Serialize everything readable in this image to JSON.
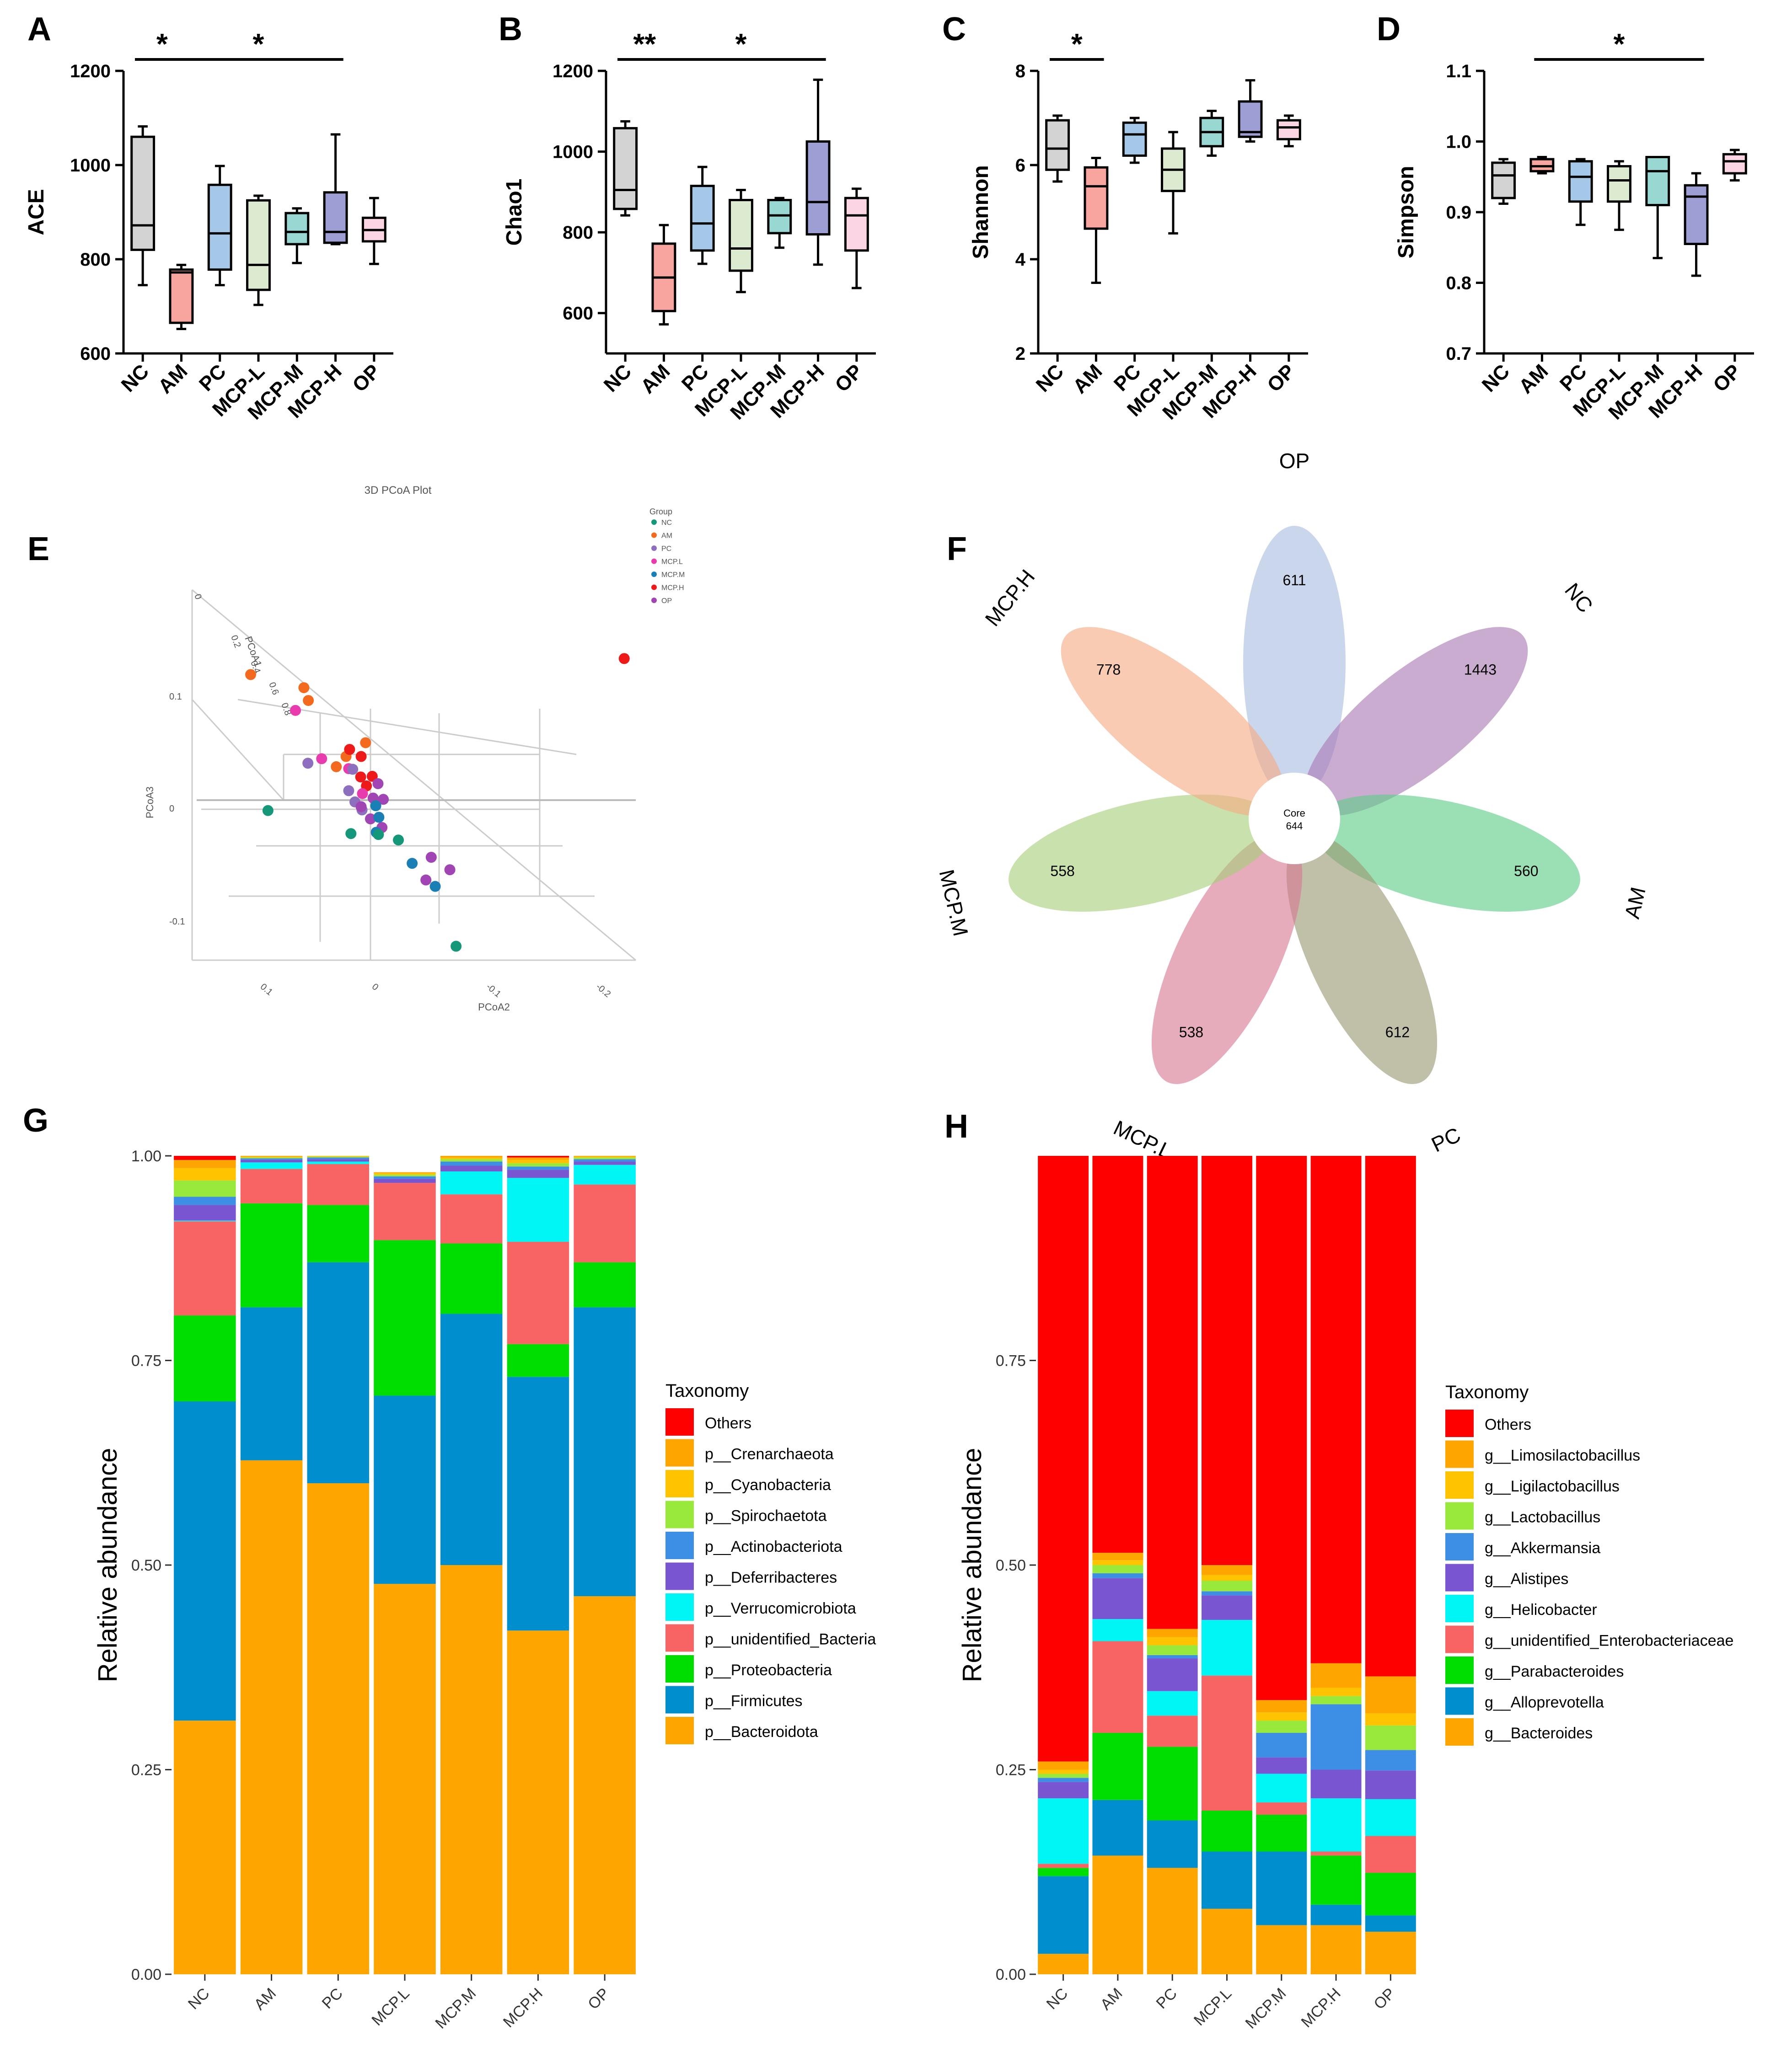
{
  "colors": {
    "groups": [
      "#d3d3d3",
      "#f8a5a0",
      "#a5c8e8",
      "#dcebcf",
      "#99d7d2",
      "#9d9ed4",
      "#fcd5e4"
    ],
    "pcoa": [
      "#15977a",
      "#f36a1f",
      "#8e6fbf",
      "#e83cae",
      "#1a7fb4",
      "#ee1a1a",
      "#a145b4"
    ],
    "venn": [
      "#a9bde0",
      "#a979b5",
      "#5ecd86",
      "#9a9872",
      "#d87993",
      "#a8cf7a",
      "#f6ab82"
    ],
    "phylum": [
      "#ff0000",
      "#ffa500",
      "#ffc300",
      "#99e83c",
      "#3d8fe6",
      "#7a55d2",
      "#00f5f5",
      "#f86464",
      "#00dd00",
      "#008ecf",
      "#ffa500"
    ],
    "genus": [
      "#ff0000",
      "#ffa500",
      "#ffc300",
      "#99e83c",
      "#3d8fe6",
      "#7a55d2",
      "#00f5f5",
      "#f86464",
      "#00dd00",
      "#008ecf",
      "#ffa500"
    ]
  },
  "chart_data": [
    {
      "type": "box",
      "panel": "A",
      "ylabel": "ACE",
      "ylim": [
        600,
        1200
      ],
      "yticks": [
        600,
        800,
        1000,
        1200
      ],
      "categories": [
        "NC",
        "AM",
        "PC",
        "MCP-L",
        "MCP-M",
        "MCP-H",
        "OP"
      ],
      "boxes": [
        {
          "min": 745,
          "q1": 820,
          "median": 872,
          "q3": 1060,
          "max": 1082
        },
        {
          "min": 652,
          "q1": 665,
          "median": 772,
          "q3": 778,
          "max": 788
        },
        {
          "min": 745,
          "q1": 778,
          "median": 855,
          "q3": 958,
          "max": 998
        },
        {
          "min": 703,
          "q1": 735,
          "median": 788,
          "q3": 925,
          "max": 935
        },
        {
          "min": 792,
          "q1": 832,
          "median": 858,
          "q3": 898,
          "max": 908
        },
        {
          "min": 832,
          "q1": 835,
          "median": 858,
          "q3": 942,
          "max": 1065
        },
        {
          "min": 790,
          "q1": 838,
          "median": 862,
          "q3": 888,
          "max": 930
        }
      ],
      "significance": [
        {
          "from": 0,
          "to": 1,
          "label": "*"
        },
        {
          "from": 1,
          "to": 5,
          "label": "*"
        }
      ]
    },
    {
      "type": "box",
      "panel": "B",
      "ylabel": "Chao1",
      "ylim": [
        500,
        1200
      ],
      "yticks": [
        600,
        800,
        1000,
        1200
      ],
      "categories": [
        "NC",
        "AM",
        "PC",
        "MCP-L",
        "MCP-M",
        "MCP-H",
        "OP"
      ],
      "boxes": [
        {
          "min": 842,
          "q1": 858,
          "median": 905,
          "q3": 1058,
          "max": 1075
        },
        {
          "min": 572,
          "q1": 605,
          "median": 688,
          "q3": 772,
          "max": 818
        },
        {
          "min": 722,
          "q1": 755,
          "median": 822,
          "q3": 915,
          "max": 962
        },
        {
          "min": 652,
          "q1": 705,
          "median": 760,
          "q3": 880,
          "max": 905
        },
        {
          "min": 762,
          "q1": 798,
          "median": 842,
          "q3": 880,
          "max": 885
        },
        {
          "min": 720,
          "q1": 795,
          "median": 875,
          "q3": 1025,
          "max": 1178
        },
        {
          "min": 662,
          "q1": 755,
          "median": 842,
          "q3": 885,
          "max": 908
        }
      ],
      "significance": [
        {
          "from": 0,
          "to": 1,
          "label": "**"
        },
        {
          "from": 1,
          "to": 5,
          "label": "*"
        }
      ]
    },
    {
      "type": "box",
      "panel": "C",
      "ylabel": "Shannon",
      "ylim": [
        2,
        8
      ],
      "yticks": [
        2,
        4,
        6,
        8
      ],
      "categories": [
        "NC",
        "AM",
        "PC",
        "MCP-L",
        "MCP-M",
        "MCP-H",
        "OP"
      ],
      "boxes": [
        {
          "min": 5.65,
          "q1": 5.9,
          "median": 6.35,
          "q3": 6.95,
          "max": 7.05
        },
        {
          "min": 3.5,
          "q1": 4.65,
          "median": 5.55,
          "q3": 5.95,
          "max": 6.15
        },
        {
          "min": 6.05,
          "q1": 6.2,
          "median": 6.65,
          "q3": 6.9,
          "max": 7.0
        },
        {
          "min": 4.55,
          "q1": 5.45,
          "median": 5.9,
          "q3": 6.35,
          "max": 6.7
        },
        {
          "min": 6.2,
          "q1": 6.4,
          "median": 6.7,
          "q3": 7.0,
          "max": 7.15
        },
        {
          "min": 6.5,
          "q1": 6.6,
          "median": 6.7,
          "q3": 7.35,
          "max": 7.8
        },
        {
          "min": 6.4,
          "q1": 6.55,
          "median": 6.8,
          "q3": 6.95,
          "max": 7.05
        }
      ],
      "significance": [
        {
          "from": 0,
          "to": 1,
          "label": "*"
        }
      ]
    },
    {
      "type": "box",
      "panel": "D",
      "ylabel": "Simpson",
      "ylim": [
        0.7,
        1.1
      ],
      "yticks": [
        0.7,
        0.8,
        0.9,
        1.0,
        1.1
      ],
      "ytick_labels": [
        "0.7",
        "0.8",
        "0.9",
        "1.0",
        "1.1"
      ],
      "categories": [
        "NC",
        "AM",
        "PC",
        "MCP-L",
        "MCP-M",
        "MCP-H",
        "OP"
      ],
      "boxes": [
        {
          "min": 0.912,
          "q1": 0.92,
          "median": 0.952,
          "q3": 0.97,
          "max": 0.975
        },
        {
          "min": 0.955,
          "q1": 0.958,
          "median": 0.965,
          "q3": 0.975,
          "max": 0.978
        },
        {
          "min": 0.882,
          "q1": 0.915,
          "median": 0.95,
          "q3": 0.972,
          "max": 0.975
        },
        {
          "min": 0.875,
          "q1": 0.915,
          "median": 0.945,
          "q3": 0.965,
          "max": 0.972
        },
        {
          "min": 0.835,
          "q1": 0.91,
          "median": 0.958,
          "q3": 0.978,
          "max": 0.978
        },
        {
          "min": 0.81,
          "q1": 0.855,
          "median": 0.922,
          "q3": 0.938,
          "max": 0.955
        },
        {
          "min": 0.945,
          "q1": 0.955,
          "median": 0.972,
          "q3": 0.982,
          "max": 0.988
        }
      ],
      "significance": [
        {
          "from": 1,
          "to": 5,
          "label": "*"
        }
      ]
    },
    {
      "type": "scatter",
      "panel": "E",
      "title": "3D PCoA Plot",
      "axis_labels": [
        "PCoA1",
        "PCoA2",
        "PCoA3"
      ],
      "axis_tick_labels": [
        "0.2",
        "0.4",
        "0.6",
        "0.8",
        "0.1",
        "0",
        "-0.1",
        "0.1",
        "0",
        "-0.1",
        "-0.2"
      ],
      "legend_title": "Group",
      "groups": [
        "NC",
        "AM",
        "PC",
        "MCP.L",
        "MCP.M",
        "MCP.H",
        "OP"
      ],
      "projected_points": [
        {
          "g": 1,
          "x": 0.132,
          "y": 0.122
        },
        {
          "g": 1,
          "x": 0.252,
          "y": 0.163
        },
        {
          "g": 1,
          "x": 0.262,
          "y": 0.203
        },
        {
          "g": 1,
          "x": 0.391,
          "y": 0.335
        },
        {
          "g": 1,
          "x": 0.347,
          "y": 0.378
        },
        {
          "g": 1,
          "x": 0.325,
          "y": 0.41
        },
        {
          "g": 5,
          "x": 0.974,
          "y": 0.072
        },
        {
          "g": 5,
          "x": 0.355,
          "y": 0.356
        },
        {
          "g": 5,
          "x": 0.381,
          "y": 0.378
        },
        {
          "g": 5,
          "x": 0.38,
          "y": 0.442
        },
        {
          "g": 5,
          "x": 0.406,
          "y": 0.44
        },
        {
          "g": 5,
          "x": 0.393,
          "y": 0.47
        },
        {
          "g": 3,
          "x": 0.233,
          "y": 0.234
        },
        {
          "g": 3,
          "x": 0.292,
          "y": 0.385
        },
        {
          "g": 3,
          "x": 0.353,
          "y": 0.416
        },
        {
          "g": 3,
          "x": 0.384,
          "y": 0.494
        },
        {
          "g": 2,
          "x": 0.261,
          "y": 0.399
        },
        {
          "g": 2,
          "x": 0.362,
          "y": 0.418
        },
        {
          "g": 2,
          "x": 0.353,
          "y": 0.485
        },
        {
          "g": 2,
          "x": 0.367,
          "y": 0.52
        },
        {
          "g": 2,
          "x": 0.383,
          "y": 0.545
        },
        {
          "g": 6,
          "x": 0.419,
          "y": 0.463
        },
        {
          "g": 6,
          "x": 0.408,
          "y": 0.508
        },
        {
          "g": 6,
          "x": 0.381,
          "y": 0.535
        },
        {
          "g": 6,
          "x": 0.431,
          "y": 0.512
        },
        {
          "g": 6,
          "x": 0.402,
          "y": 0.573
        },
        {
          "g": 6,
          "x": 0.428,
          "y": 0.6
        },
        {
          "g": 6,
          "x": 0.539,
          "y": 0.693
        },
        {
          "g": 6,
          "x": 0.581,
          "y": 0.732
        },
        {
          "g": 6,
          "x": 0.527,
          "y": 0.764
        },
        {
          "g": 4,
          "x": 0.414,
          "y": 0.532
        },
        {
          "g": 4,
          "x": 0.421,
          "y": 0.568
        },
        {
          "g": 4,
          "x": 0.415,
          "y": 0.615
        },
        {
          "g": 4,
          "x": 0.496,
          "y": 0.712
        },
        {
          "g": 4,
          "x": 0.548,
          "y": 0.784
        },
        {
          "g": 0,
          "x": 0.171,
          "y": 0.547
        },
        {
          "g": 0,
          "x": 0.358,
          "y": 0.619
        },
        {
          "g": 0,
          "x": 0.42,
          "y": 0.622
        },
        {
          "g": 0,
          "x": 0.465,
          "y": 0.639
        },
        {
          "g": 0,
          "x": 0.595,
          "y": 0.971
        }
      ]
    },
    {
      "type": "venn",
      "panel": "F",
      "sets": [
        {
          "name": "OP",
          "unique": 611
        },
        {
          "name": "NC",
          "unique": 1443
        },
        {
          "name": "AM",
          "unique": 560
        },
        {
          "name": "PC",
          "unique": 612
        },
        {
          "name": "MCP.L",
          "unique": 538
        },
        {
          "name": "MCP.M",
          "unique": 558
        },
        {
          "name": "MCP.H",
          "unique": 778
        }
      ],
      "core_label": "Core",
      "core_value": "644"
    },
    {
      "type": "stacked_bar",
      "panel": "G",
      "ylabel": "Relative abundance",
      "ylim": [
        0,
        1
      ],
      "yticks": [
        0,
        0.25,
        0.5,
        0.75,
        1.0
      ],
      "ytick_labels": [
        "0.00",
        "0.25",
        "0.50",
        "0.75",
        "1.00"
      ],
      "categories": [
        "NC",
        "AM",
        "PC",
        "MCP.L",
        "MCP.M",
        "MCP.H",
        "OP"
      ],
      "legend_title": "Taxonomy",
      "series_bottom_up": [
        "p__Bacteroidota",
        "p__Firmicutes",
        "p__Proteobacteria",
        "p__unidentified_Bacteria",
        "p__Verrucomicrobiota",
        "p__Deferribacteres",
        "p__Actinobacteriota",
        "p__Spirochaetota",
        "p__Cyanobacteria",
        "p__Crenarchaeota",
        "Others"
      ],
      "legend_order": [
        "Others",
        "p__Crenarchaeota",
        "p__Cyanobacteria",
        "p__Spirochaetota",
        "p__Actinobacteriota",
        "p__Deferribacteres",
        "p__Verrucomicrobiota",
        "p__unidentified_Bacteria",
        "p__Proteobacteria",
        "p__Firmicutes",
        "p__Bacteroidota"
      ],
      "values": [
        [
          0.31,
          0.39,
          0.105,
          0.115,
          0.001,
          0.019,
          0.01,
          0.02,
          0.015,
          0.01,
          0.005
        ],
        [
          0.628,
          0.187,
          0.127,
          0.042,
          0.008,
          0.003,
          0.002,
          0.001,
          0.001,
          0.001,
          0
        ],
        [
          0.6,
          0.27,
          0.07,
          0.05,
          0.003,
          0.003,
          0.002,
          0.001,
          0.001,
          0,
          0
        ],
        [
          0.477,
          0.23,
          0.19,
          0.07,
          0.0,
          0.005,
          0.003,
          0.002,
          0.002,
          0.001,
          0
        ],
        [
          0.5,
          0.307,
          0.086,
          0.06,
          0.028,
          0.007,
          0.005,
          0.003,
          0.002,
          0.002,
          0
        ],
        [
          0.42,
          0.31,
          0.04,
          0.125,
          0.078,
          0.01,
          0.004,
          0.004,
          0.004,
          0.003,
          0.002
        ],
        [
          0.462,
          0.353,
          0.055,
          0.095,
          0.024,
          0.004,
          0.003,
          0.002,
          0.001,
          0.001,
          0
        ]
      ]
    },
    {
      "type": "stacked_bar",
      "panel": "H",
      "ylabel": "Relative abundance",
      "ylim": [
        0,
        1
      ],
      "yticks": [
        0,
        0.25,
        0.5,
        0.75
      ],
      "ytick_labels": [
        "0.00",
        "0.25",
        "0.50",
        "0.75"
      ],
      "categories": [
        "NC",
        "AM",
        "PC",
        "MCP.L",
        "MCP.M",
        "MCP.H",
        "OP"
      ],
      "legend_title": "Taxonomy",
      "series_bottom_up": [
        "g__Bacteroides",
        "g__Alloprevotella",
        "g__Parabacteroides",
        "g__unidentified_Enterobacteriaceae",
        "g__Helicobacter",
        "g__Alistipes",
        "g__Akkermansia",
        "g__Lactobacillus",
        "g__Ligilactobacillus",
        "g__Limosilactobacillus",
        "Others"
      ],
      "legend_order": [
        "Others",
        "g__Limosilactobacillus",
        "g__Ligilactobacillus",
        "g__Lactobacillus",
        "g__Akkermansia",
        "g__Alistipes",
        "g__Helicobacter",
        "g__unidentified_Enterobacteriaceae",
        "g__Parabacteroides",
        "g__Alloprevotella",
        "g__Bacteroides"
      ],
      "values": [
        [
          0.025,
          0.095,
          0.01,
          0.005,
          0.08,
          0.02,
          0.005,
          0.005,
          0.005,
          0.01,
          0.74
        ],
        [
          0.145,
          0.068,
          0.082,
          0.112,
          0.027,
          0.05,
          0.006,
          0.01,
          0.006,
          0.009,
          0.49
        ],
        [
          0.13,
          0.058,
          0.09,
          0.038,
          0.03,
          0.04,
          0.004,
          0.012,
          0.01,
          0.01,
          0.578
        ],
        [
          0.08,
          0.07,
          0.05,
          0.165,
          0.068,
          0.03,
          0.005,
          0.013,
          0.007,
          0.012,
          0.5
        ],
        [
          0.06,
          0.09,
          0.045,
          0.015,
          0.035,
          0.02,
          0.03,
          0.015,
          0.01,
          0.015,
          0.665
        ],
        [
          0.06,
          0.025,
          0.06,
          0.005,
          0.065,
          0.035,
          0.08,
          0.01,
          0.01,
          0.03,
          0.62
        ],
        [
          0.052,
          0.02,
          0.052,
          0.045,
          0.045,
          0.035,
          0.025,
          0.03,
          0.015,
          0.045,
          0.636
        ]
      ]
    }
  ]
}
